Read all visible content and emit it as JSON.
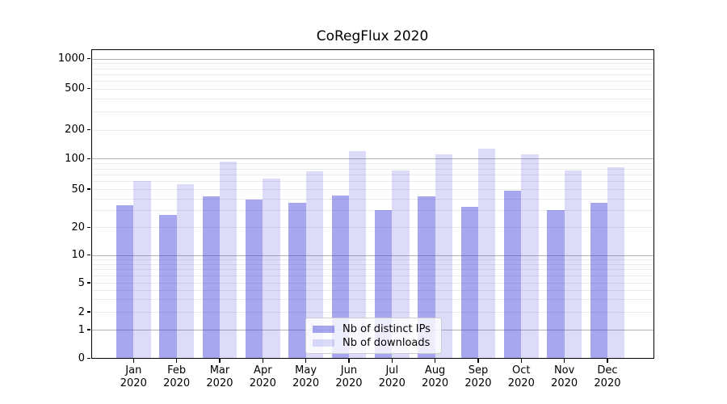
{
  "chart_data": {
    "type": "bar",
    "title": "CoRegFlux 2020",
    "categories": [
      "Jan",
      "Feb",
      "Mar",
      "Apr",
      "May",
      "Jun",
      "Jul",
      "Aug",
      "Sep",
      "Oct",
      "Nov",
      "Dec"
    ],
    "category_year": "2020",
    "series": [
      {
        "name": "Nb of distinct IPs",
        "color_hex": "#a7a7f0",
        "color": "rgba(46,46,219,0.42)",
        "values": [
          34,
          27,
          42,
          39,
          36,
          43,
          30,
          42,
          33,
          48,
          30,
          36
        ]
      },
      {
        "name": "Nb of downloads",
        "color_hex": "#dcdcf8",
        "color": "rgba(46,46,219,0.17)",
        "values": [
          60,
          56,
          93,
          64,
          75,
          121,
          77,
          111,
          127,
          111,
          77,
          83
        ]
      }
    ],
    "yscale": "symlog",
    "yticks": [
      0,
      1,
      2,
      5,
      10,
      20,
      50,
      100,
      200,
      500,
      1000
    ],
    "ylim": [
      0,
      1500
    ],
    "xlabel": "",
    "ylabel": "",
    "grid": "on",
    "legend_position": "lower center",
    "grid_major_color": "#b3b3b3",
    "grid_minor_color": "#ebebeb"
  }
}
